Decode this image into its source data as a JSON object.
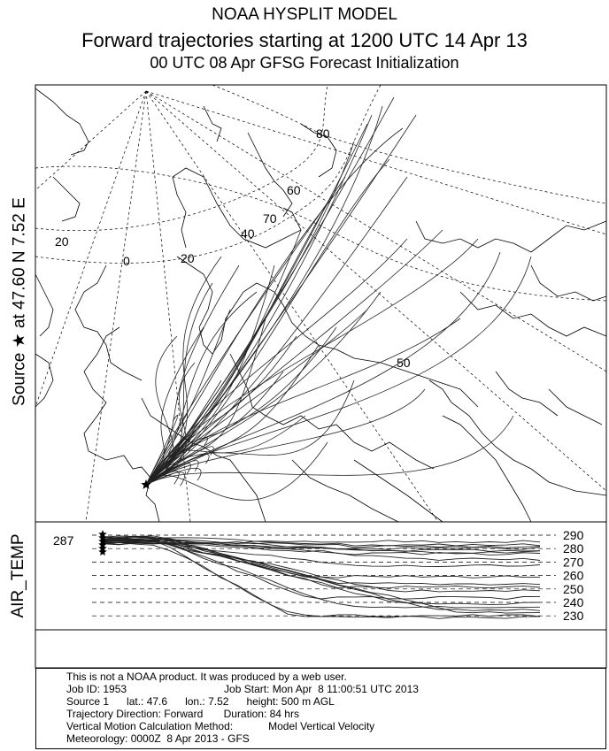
{
  "header": {
    "title": "NOAA HYSPLIT MODEL",
    "subtitle": "Forward trajectories starting at 1200 UTC 14 Apr 13",
    "init": "00 UTC 08 Apr    GFSG  Forecast Initialization"
  },
  "source_label": "Source ★ at  47.60 N   7.52 E",
  "map": {
    "longitude_labels": [
      "20",
      "0",
      "20",
      "40",
      "50",
      "60",
      "70",
      "80"
    ],
    "source": {
      "lat": 47.6,
      "lon": 7.52
    }
  },
  "air_temp": {
    "label": "AIR_TEMP",
    "start_value": "287",
    "levels": [
      "290",
      "280",
      "270",
      "260",
      "250",
      "240",
      "230"
    ]
  },
  "info": {
    "line1": "This is not a NOAA product. It was produced by a web user.",
    "line2_left": "Job ID: 1953",
    "line2_right": "Job Start: Mon Apr  8 11:00:51 UTC 2013",
    "line3": "Source 1      lat.: 47.6      lon.: 7.52      height: 500 m AGL",
    "line4": "Trajectory Direction: Forward       Duration: 84 hrs",
    "line5_left": "Vertical Motion Calculation Method:",
    "line5_right": "Model Vertical Velocity",
    "line6": "Meteorology: 0000Z  8 Apr 2013 - GFS"
  }
}
